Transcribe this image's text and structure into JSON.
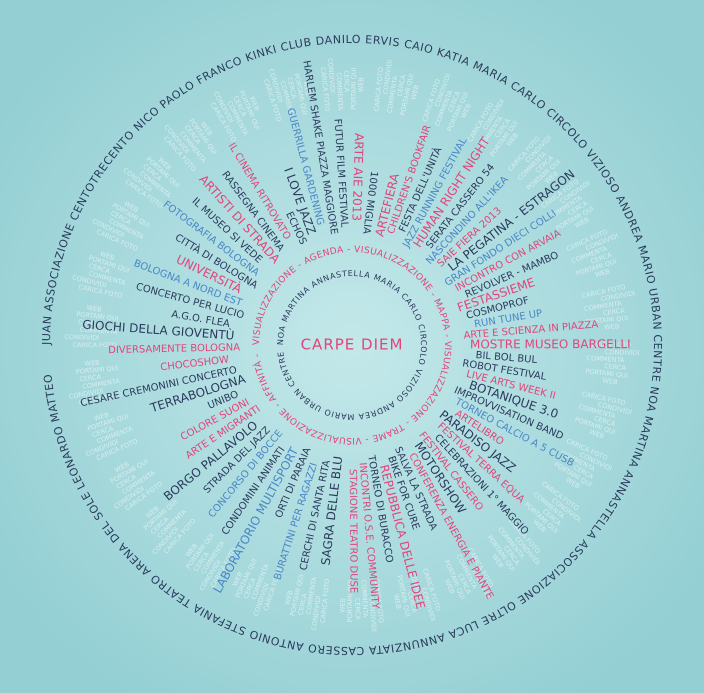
{
  "center_title": "CARPE DIEM",
  "outer_ring": "JUAN   ASSOCIAZIONE CENTOTRECENTO   NICO   PAOLO   FRANCO   KINKI CLUB   DANILO   ERVIS   CAIO   KATIA MARIA   CARLO   CIRCOLO VIZIOSO   ANDREA   MARIO   URBAN CENTRE   NOA   MARTINA   ANNASTELLA   ASSOCIAZIONE OLTRE   LUCA   ANNUNZIATA   CASSERO   ANTONIO   STEFANIA   TEATRO ARENA DEL SOLE   LEONARDO   MATTEO",
  "inner_ring": "NOA   MARTINA   ANNASTELLA   MARIA   CARLO   CIRCOLO   VIZIOSO   ANDREA   MARIO   URBAN   CENTRE",
  "visual_ring": "VISUALIZZAZIONE - AGENDA - VISUALIZZAZIONE - MAPPA - VISUALIZZAZIONE - TRAME - VISUALIZZAZIONE - AFFINITÀ -",
  "action_words": [
    "CARICA FOTO",
    "CONDIVIDI",
    "COMMENTA",
    "CERCA",
    "PORTAMI QUI",
    "WEB"
  ],
  "events_right": [
    {
      "label": "ARTEFIERA",
      "color": "#e0457b"
    },
    {
      "label": "CHILDREN'S BOOKFAIR",
      "color": "#e0457b"
    },
    {
      "label": "FESTA DELL'UNITÀ",
      "color": "#2b3a5c"
    },
    {
      "label": "JAZZ RUNNING FESTIVAL",
      "color": "#4a86c5"
    },
    {
      "label": "HUMAN RIGHT NIGHT",
      "color": "#e0457b"
    },
    {
      "label": "SERATA CASSERO 54",
      "color": "#2b3a5c"
    },
    {
      "label": "NASCONDINO ALL'IKEA",
      "color": "#4a86c5"
    },
    {
      "label": "SAIE FIERA 2013",
      "color": "#e0457b"
    },
    {
      "label": "LA PEGATINA - ESTRAGON",
      "color": "#2b3a5c"
    },
    {
      "label": "GRAN FONDO DIECI COLLI",
      "color": "#4a86c5"
    },
    {
      "label": "INCONTRO CON ARVAIA",
      "color": "#e0457b"
    },
    {
      "label": "REVOLVER - MAMBO",
      "color": "#2b3a5c"
    },
    {
      "label": "FESTASSIEME",
      "color": "#e0457b"
    },
    {
      "label": "COSMOPROF",
      "color": "#2b3a5c"
    },
    {
      "label": "RUN TUNE UP",
      "color": "#4a86c5"
    },
    {
      "label": "ARTE E SCIENZA IN PIAZZA",
      "color": "#e0457b"
    },
    {
      "label": "MOSTRE MUSEO BARGELLI",
      "color": "#e0457b"
    },
    {
      "label": "BIL BOL BUL",
      "color": "#2b3a5c"
    },
    {
      "label": "ROBOT FESTIVAL",
      "color": "#2b3a5c"
    },
    {
      "label": "LIVE ARTS WEEK II",
      "color": "#e0457b"
    },
    {
      "label": "BOTANIQUE 3.0",
      "color": "#2b3a5c"
    },
    {
      "label": "IMPROVVISATION BAND",
      "color": "#2b3a5c"
    },
    {
      "label": "TORNEO CALCIO A 5 CUSB",
      "color": "#4a86c5"
    },
    {
      "label": "ARTELIBRO",
      "color": "#e0457b"
    },
    {
      "label": "PARADISO JAZZ",
      "color": "#2b3a5c"
    },
    {
      "label": "FESTIVAL TERRA EQUA",
      "color": "#e0457b"
    },
    {
      "label": "CELEBRAZIONI 1° MAGGIO",
      "color": "#2b3a5c"
    },
    {
      "label": "FESTIVAL CASSERO",
      "color": "#e0457b"
    },
    {
      "label": "MOTORSHOW",
      "color": "#2b3a5c"
    },
    {
      "label": "CONFERENZA ENERGIA E PIANTE",
      "color": "#e0457b"
    },
    {
      "label": "SALVA LA STRADA",
      "color": "#2b3a5c"
    },
    {
      "label": "BIKE FOR CURE",
      "color": "#2b3a5c"
    },
    {
      "label": "REPUBBLICA DELLE IDEE",
      "color": "#e0457b"
    },
    {
      "label": "TORNEO DI BURACCO",
      "color": "#2b3a5c"
    },
    {
      "label": "INCONTRI O.S.E. COMMUNITY",
      "color": "#e0457b"
    },
    {
      "label": "STAGIONE TEATRO DUSE",
      "color": "#e0457b"
    }
  ],
  "events_left": [
    {
      "label": "SAGRA DELLE BLU",
      "color": "#2b3a5c"
    },
    {
      "label": "CERCHI DI SANTA RITA",
      "color": "#2b3a5c"
    },
    {
      "label": "BURATTINI PER RAGAZZI",
      "color": "#4a86c5"
    },
    {
      "label": "ORTI DI PARAIA",
      "color": "#2b3a5c"
    },
    {
      "label": "LABORATORIO MULTISPORT",
      "color": "#4a86c5"
    },
    {
      "label": "CONDOMINI ANIMATI",
      "color": "#2b3a5c"
    },
    {
      "label": "CONCORSO DI BOCCE",
      "color": "#4a86c5"
    },
    {
      "label": "STRADA DEL JAZZ",
      "color": "#2b3a5c"
    },
    {
      "label": "BORGO PALLAVOLO",
      "color": "#2b3a5c"
    },
    {
      "label": "ARTE E MIGRANTI",
      "color": "#e0457b"
    },
    {
      "label": "COLORE SUONI",
      "color": "#e0457b"
    },
    {
      "label": "UNIBO",
      "color": "#2b3a5c"
    },
    {
      "label": "TERRABOLOGNA",
      "color": "#2b3a5c"
    },
    {
      "label": "CESARE CREMONINI CONCERTO",
      "color": "#2b3a5c"
    },
    {
      "label": "CHOCOSHOW",
      "color": "#e0457b"
    },
    {
      "label": "DIVERSAMENTE BOLOGNA",
      "color": "#e0457b"
    },
    {
      "label": "GIOCHI DELLA GIOVENTÙ",
      "color": "#2b3a5c"
    },
    {
      "label": "A.G.O. FLEA",
      "color": "#2b3a5c"
    },
    {
      "label": "CONCERTO PER LUCIO",
      "color": "#2b3a5c"
    },
    {
      "label": "BOLOGNA A NORD EST",
      "color": "#4a86c5"
    },
    {
      "label": "UNIVERSITÀ",
      "color": "#e0457b"
    },
    {
      "label": "CITTÀ DI BOLOGNA",
      "color": "#2b3a5c"
    },
    {
      "label": "FOTOGRAFIA BOLOGNA",
      "color": "#4a86c5"
    },
    {
      "label": "IL MUSEO SI VEDE",
      "color": "#2b3a5c"
    },
    {
      "label": "ARTISTI DI STRADA",
      "color": "#e0457b"
    },
    {
      "label": "RASSEGNA CINEMA",
      "color": "#2b3a5c"
    },
    {
      "label": "IL CINEMA RITROVATO",
      "color": "#e0457b"
    },
    {
      "label": "ECHOS",
      "color": "#2b3a5c"
    },
    {
      "label": "I LOVE JAZZ",
      "color": "#2b3a5c"
    },
    {
      "label": "GUERRILLA GARDENING",
      "color": "#4a86c5"
    },
    {
      "label": "HARLEM SHAKE PIAZZA MAGGIORE",
      "color": "#2b3a5c"
    },
    {
      "label": "FUTUR FILM FESTIVAL",
      "color": "#2b3a5c"
    },
    {
      "label": "ARTE AIE 2013",
      "color": "#e0457b"
    },
    {
      "label": "1000 MIGLIA",
      "color": "#2b3a5c"
    }
  ]
}
